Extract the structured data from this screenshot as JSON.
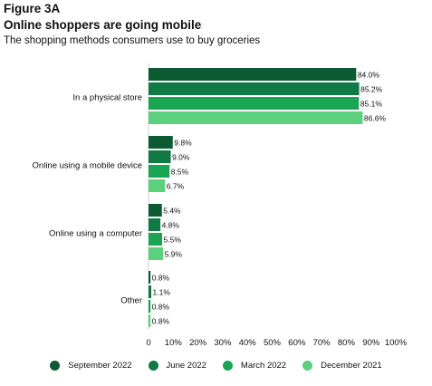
{
  "figure_label": "Figure 3A",
  "title": "Online shoppers are going mobile",
  "subtitle": "The shopping methods consumers use to buy groceries",
  "chart_data": {
    "type": "bar",
    "orientation": "horizontal",
    "categories": [
      "In a physical store",
      "Online using a mobile device",
      "Online using a computer",
      "Other"
    ],
    "series": [
      {
        "name": "September 2022",
        "color": "#0b5a32",
        "values": [
          84.0,
          9.8,
          5.4,
          0.8
        ]
      },
      {
        "name": "June 2022",
        "color": "#107a45",
        "values": [
          85.2,
          9.0,
          4.8,
          1.1
        ]
      },
      {
        "name": "March 2022",
        "color": "#1aa552",
        "values": [
          85.1,
          8.5,
          5.5,
          0.8
        ]
      },
      {
        "name": "December 2021",
        "color": "#5bd07d",
        "values": [
          86.6,
          6.7,
          5.9,
          0.8
        ]
      }
    ],
    "value_labels": [
      [
        "84.0%",
        "85.2%",
        "85.1%",
        "86.6%"
      ],
      [
        "9.8%",
        "9.0%",
        "8.5%",
        "6.7%"
      ],
      [
        "5.4%",
        "4.8%",
        "5.5%",
        "5.9%"
      ],
      [
        "0.8%",
        "1.1%",
        "0.8%",
        "0.8%"
      ]
    ],
    "xlim": [
      0,
      100
    ],
    "x_ticks": [
      "0",
      "10%",
      "20%",
      "30%",
      "40%",
      "50%",
      "60%",
      "70%",
      "80%",
      "90%",
      "100%"
    ],
    "grid": false,
    "legend_position": "bottom"
  }
}
